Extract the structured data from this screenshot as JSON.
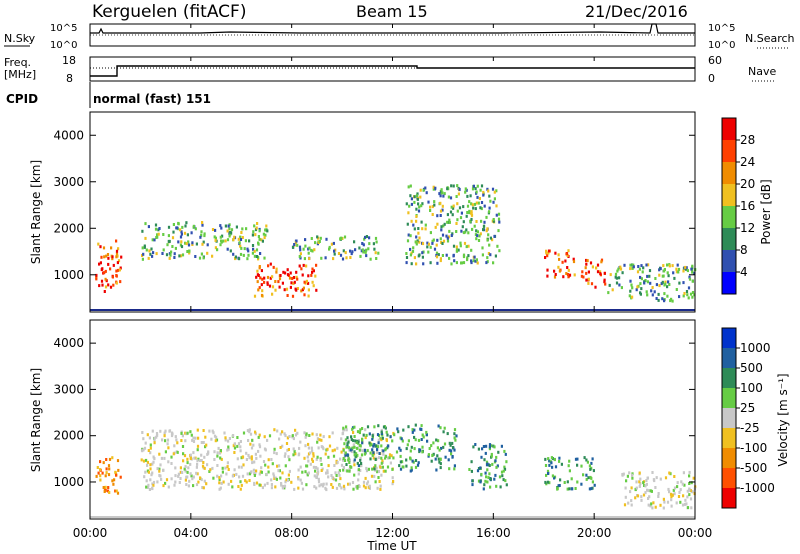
{
  "header": {
    "station": "Kerguelen (fitACF)",
    "beam": "Beam 15",
    "date": "21/Dec/2016"
  },
  "sky_panel": {
    "left_label": "N.Sky",
    "right_label": "N.Search",
    "ytick_left": [
      "10^5",
      "10^0"
    ],
    "ytick_right": [
      "10^5",
      "10^0"
    ]
  },
  "freq_panel": {
    "left_label_line1": "Freq.",
    "left_label_line2": "[MHz]",
    "right_label": "Nave",
    "ytick_left": [
      "18",
      "8"
    ],
    "ytick_right": [
      "60",
      "0"
    ]
  },
  "cpid_panel": {
    "left_label": "CPID",
    "mode_text": "normal (fast) 151"
  },
  "xaxis": {
    "label": "Time UT",
    "ticks": [
      "00:00",
      "04:00",
      "08:00",
      "12:00",
      "16:00",
      "20:00",
      "00:00"
    ]
  },
  "power_panel": {
    "ylabel": "Slant Range [km]",
    "yticks": [
      "1000",
      "2000",
      "3000",
      "4000"
    ],
    "cbar_label": "Power [dB]",
    "cbar_ticks": [
      "4",
      "8",
      "12",
      "16",
      "20",
      "24",
      "28"
    ],
    "cbar_colors": [
      "#0000ff",
      "#3050b0",
      "#2e8b57",
      "#66cc44",
      "#f0c020",
      "#f08c00",
      "#ff4000",
      "#ee0000"
    ]
  },
  "velocity_panel": {
    "ylabel": "Slant Range [km]",
    "yticks": [
      "1000",
      "2000",
      "3000",
      "4000"
    ],
    "cbar_label": "Velocity [m s⁻¹]",
    "cbar_ticks": [
      "1000",
      "500",
      "100",
      "25",
      "-25",
      "-100",
      "-500",
      "-1000"
    ],
    "cbar_colors": [
      "#0033cc",
      "#2060a0",
      "#2e8b57",
      "#66cc44",
      "#c8c8c8",
      "#f0c020",
      "#f08c00",
      "#ff5000",
      "#ee0000"
    ]
  },
  "chart_data": {
    "type": "heatmap",
    "x": {
      "unit": "hours UT",
      "range": [
        0,
        24
      ]
    },
    "y": {
      "unit": "km",
      "range": [
        200,
        4500
      ]
    },
    "freq_series": [
      [
        0,
        8
      ],
      [
        1,
        8
      ],
      [
        1,
        12
      ],
      [
        13,
        12
      ],
      [
        13,
        12
      ],
      [
        24,
        12
      ]
    ],
    "nave_series": [
      [
        0,
        30
      ],
      [
        24,
        30
      ]
    ],
    "power_regions": [
      {
        "t0": 0.2,
        "t1": 1.2,
        "r0": 600,
        "r1": 1700,
        "level": "high"
      },
      {
        "t0": 2.0,
        "t1": 7.0,
        "r0": 1300,
        "r1": 2100,
        "level": "mid"
      },
      {
        "t0": 6.5,
        "t1": 9.0,
        "r0": 500,
        "r1": 1200,
        "level": "high"
      },
      {
        "t0": 8.0,
        "t1": 11.5,
        "r0": 1300,
        "r1": 1800,
        "level": "mid"
      },
      {
        "t0": 12.5,
        "t1": 16.2,
        "r0": 1200,
        "r1": 2900,
        "level": "mid"
      },
      {
        "t0": 18.0,
        "t1": 19.2,
        "r0": 900,
        "r1": 1500,
        "level": "high"
      },
      {
        "t0": 19.4,
        "t1": 20.4,
        "r0": 700,
        "r1": 1300,
        "level": "high"
      },
      {
        "t0": 20.5,
        "t1": 24.0,
        "r0": 400,
        "r1": 1200,
        "level": "mid"
      }
    ],
    "velocity_regions": [
      {
        "t0": 0.2,
        "t1": 1.2,
        "r0": 700,
        "r1": 1500,
        "level": "negative"
      },
      {
        "t0": 2.0,
        "t1": 12.0,
        "r0": 800,
        "r1": 2100,
        "level": "near-zero"
      },
      {
        "t0": 10.0,
        "t1": 14.5,
        "r0": 1200,
        "r1": 2200,
        "level": "positive"
      },
      {
        "t0": 15.0,
        "t1": 16.5,
        "r0": 800,
        "r1": 1800,
        "level": "positive"
      },
      {
        "t0": 18.0,
        "t1": 20.0,
        "r0": 800,
        "r1": 1500,
        "level": "positive"
      },
      {
        "t0": 21.0,
        "t1": 24.0,
        "r0": 400,
        "r1": 1200,
        "level": "near-zero"
      }
    ]
  }
}
